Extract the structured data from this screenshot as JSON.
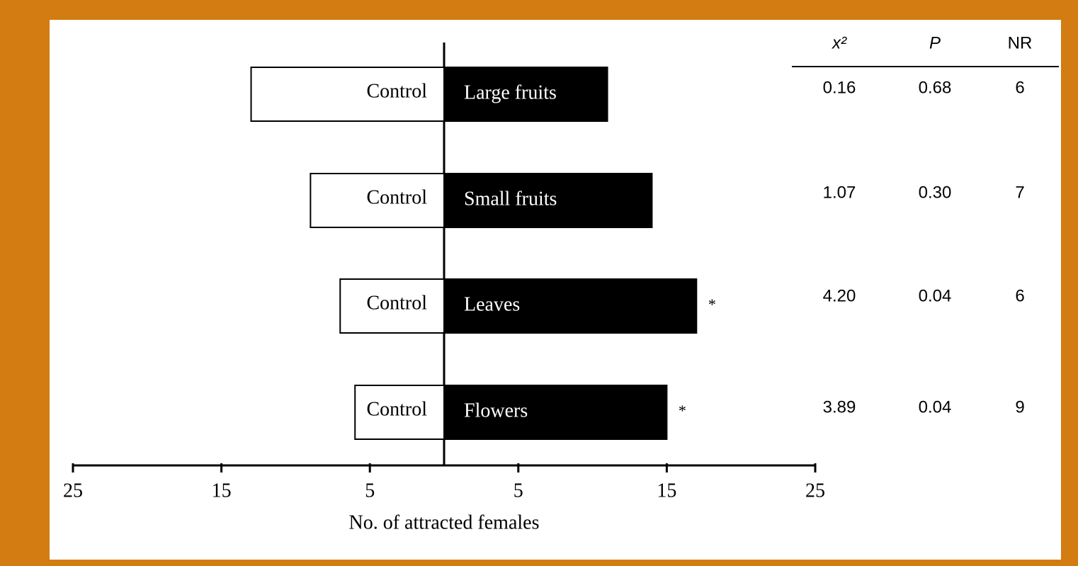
{
  "chart_data": {
    "type": "diverging-bar",
    "xlabel": "No. of attracted females",
    "categories": [
      "Large fruits",
      "Small fruits",
      "Leaves",
      "Flowers"
    ],
    "series": [
      {
        "name": "Control",
        "color": "#ffffff",
        "values": [
          -13,
          -9,
          -7,
          -6
        ]
      },
      {
        "color": "#000000",
        "values": [
          11,
          14,
          17,
          15
        ]
      }
    ],
    "significance": [
      null,
      null,
      "*",
      "*"
    ],
    "xlim": [
      -25,
      25
    ],
    "xticks": [
      {
        "value": -25,
        "label": "25"
      },
      {
        "value": -15,
        "label": "15"
      },
      {
        "value": -5,
        "label": "5"
      },
      5,
      15,
      25
    ],
    "table": {
      "columns": [
        "x²",
        "P",
        "NR"
      ],
      "rows": [
        [
          "0.16",
          "0.68",
          "6"
        ],
        [
          "1.07",
          "0.30",
          "7"
        ],
        [
          "4.20",
          "0.04",
          "6"
        ],
        [
          "3.89",
          "0.04",
          "9"
        ]
      ]
    }
  }
}
